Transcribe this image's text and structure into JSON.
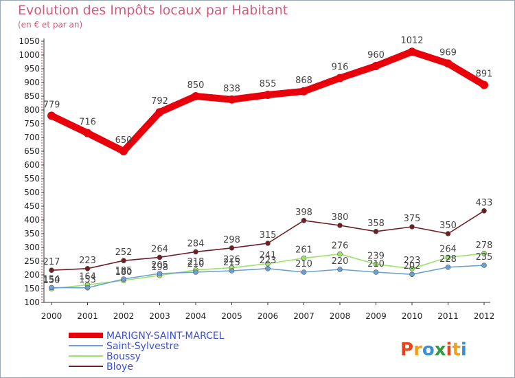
{
  "chart_data": {
    "type": "line",
    "title": "Evolution des Impôts locaux par Habitant",
    "subtitle": "(en € et par an)",
    "xlabel": "",
    "ylabel": "",
    "categories": [
      "2000",
      "2001",
      "2002",
      "2003",
      "2004",
      "2005",
      "2006",
      "2007",
      "2008",
      "2009",
      "2010",
      "2011",
      "2012"
    ],
    "ylim": [
      100,
      1050
    ],
    "yticks": [
      100,
      150,
      200,
      250,
      300,
      350,
      400,
      450,
      500,
      550,
      600,
      650,
      700,
      750,
      800,
      850,
      900,
      950,
      1000,
      1050
    ],
    "grid": false,
    "legend_position": "bottom-left",
    "series": [
      {
        "name": "MARIGNY-SAINT-MARCEL",
        "color": "#e8000b",
        "values": [
          779,
          716,
          650,
          792,
          850,
          838,
          855,
          868,
          916,
          960,
          1012,
          969,
          891
        ],
        "labels": [
          "779",
          "716",
          "650",
          "792",
          "850",
          "838",
          "855",
          "868",
          "916",
          "960",
          "1012",
          "969",
          "891"
        ]
      },
      {
        "name": "Saint-Sylvestre",
        "color": "#6a9fd0",
        "values": [
          154,
          153,
          185,
          205,
          210,
          215,
          223,
          210,
          220,
          210,
          202,
          228,
          235
        ],
        "labels": [
          "154",
          "153",
          "185",
          "205",
          "210",
          "215",
          "223",
          "210",
          "220",
          "210",
          "202",
          "228",
          "235"
        ]
      },
      {
        "name": "Boussy",
        "color": "#9be36a",
        "values": [
          150,
          164,
          180,
          198,
          218,
          226,
          241,
          261,
          276,
          239,
          223,
          264,
          278
        ],
        "labels": [
          "150",
          "164",
          "180",
          "198",
          "218",
          "226",
          "241",
          "261",
          "276",
          "239",
          "223",
          "264",
          "278"
        ]
      },
      {
        "name": "Bloye",
        "color": "#6e1e24",
        "values": [
          217,
          223,
          252,
          264,
          284,
          298,
          315,
          398,
          380,
          358,
          375,
          350,
          433
        ],
        "labels": [
          "217",
          "223",
          "252",
          "264",
          "284",
          "298",
          "315",
          "398",
          "380",
          "358",
          "375",
          "350",
          "433"
        ]
      }
    ]
  },
  "logo": {
    "text": "Proxiti",
    "letters": [
      "P",
      "r",
      "o",
      "x",
      "i",
      "t",
      "i"
    ],
    "colors": [
      "#e8431a",
      "#f0a11b",
      "#3c8fd6",
      "#2e9b3e",
      "#e8431a",
      "#f0a11b",
      "#3c8fd6"
    ]
  }
}
